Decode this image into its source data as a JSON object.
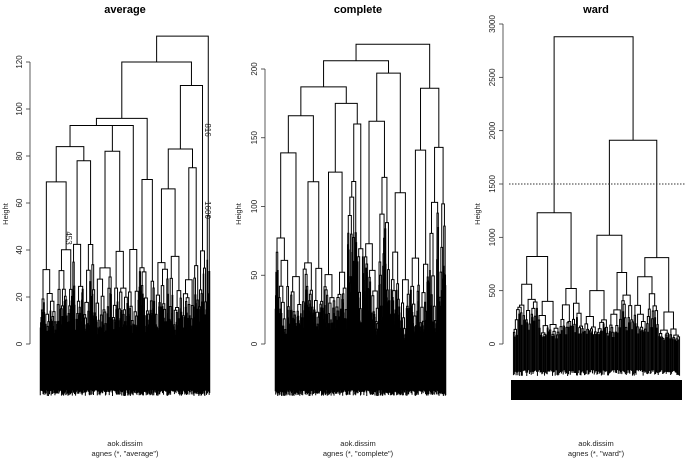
{
  "chart_data": [
    {
      "type": "dendrogram",
      "title": "average",
      "ylabel": "Height",
      "xlabel": "aok.dissim",
      "sub": "agnes (*, \"average\")",
      "ylim": [
        0,
        135
      ],
      "yticks": [
        0,
        20,
        40,
        60,
        80,
        100,
        120
      ],
      "leaf_labels": [
        "816",
        "1600",
        "453"
      ],
      "tree": [
        131,
        [
          120,
          [
            96,
            [
              93,
              [
                84,
                [
                  69,
                  30,
                  30
                ],
                [
                  78,
                  20,
                  22
                ]
              ],
              [
                93,
                [
                  82,
                  30,
                  30
                ],
                20
              ]
            ],
            [
              70,
              20,
              10
            ]
          ],
          [
            110,
            [
              83,
              [
                66,
                25,
                25
              ],
              [
                75,
                20,
                10
              ]
            ],
            15
          ]
        ],
        6
      ]
    },
    {
      "type": "dendrogram",
      "title": "complete",
      "ylabel": "Height",
      "xlabel": "aok.dissim",
      "sub": "agnes (*, \"complete\")",
      "ylim": [
        0,
        225
      ],
      "yticks": [
        0,
        50,
        100,
        150,
        200
      ],
      "tree": [
        218,
        [
          206,
          [
            187,
            [
              166,
              [
                139,
                30,
                25
              ],
              [
                118,
                25,
                20
              ]
            ],
            [
              175,
              [
                125,
                25,
                25
              ],
              [
                160,
                20,
                15
              ]
            ]
          ],
          [
            197,
            [
              162,
              30,
              25
            ],
            [
              110,
              20,
              20
            ]
          ]
        ],
        [
          186,
          [
            141,
            20,
            20
          ],
          [
            143,
            20,
            15
          ]
        ]
      ]
    },
    {
      "type": "dendrogram",
      "title": "ward",
      "ylabel": "Height",
      "xlabel": "aok.dissim",
      "sub": "agnes (*, \"ward\")",
      "ylim": [
        0,
        3000
      ],
      "yticks": [
        0,
        500,
        1000,
        1500,
        2000,
        2500,
        3000
      ],
      "cut_height": 1500,
      "tree": [
        2880,
        [
          1230,
          [
            820,
            [
              560,
              14,
              14
            ],
            [
              400,
              12,
              12
            ]
          ],
          [
            520,
            14,
            14
          ]
        ],
        [
          1910,
          [
            1020,
            [
              500,
              14,
              14
            ],
            [
              670,
              14,
              14
            ]
          ],
          [
            810,
            [
              630,
              14,
              14
            ],
            [
              300,
              12,
              12
            ]
          ]
        ]
      ]
    }
  ]
}
